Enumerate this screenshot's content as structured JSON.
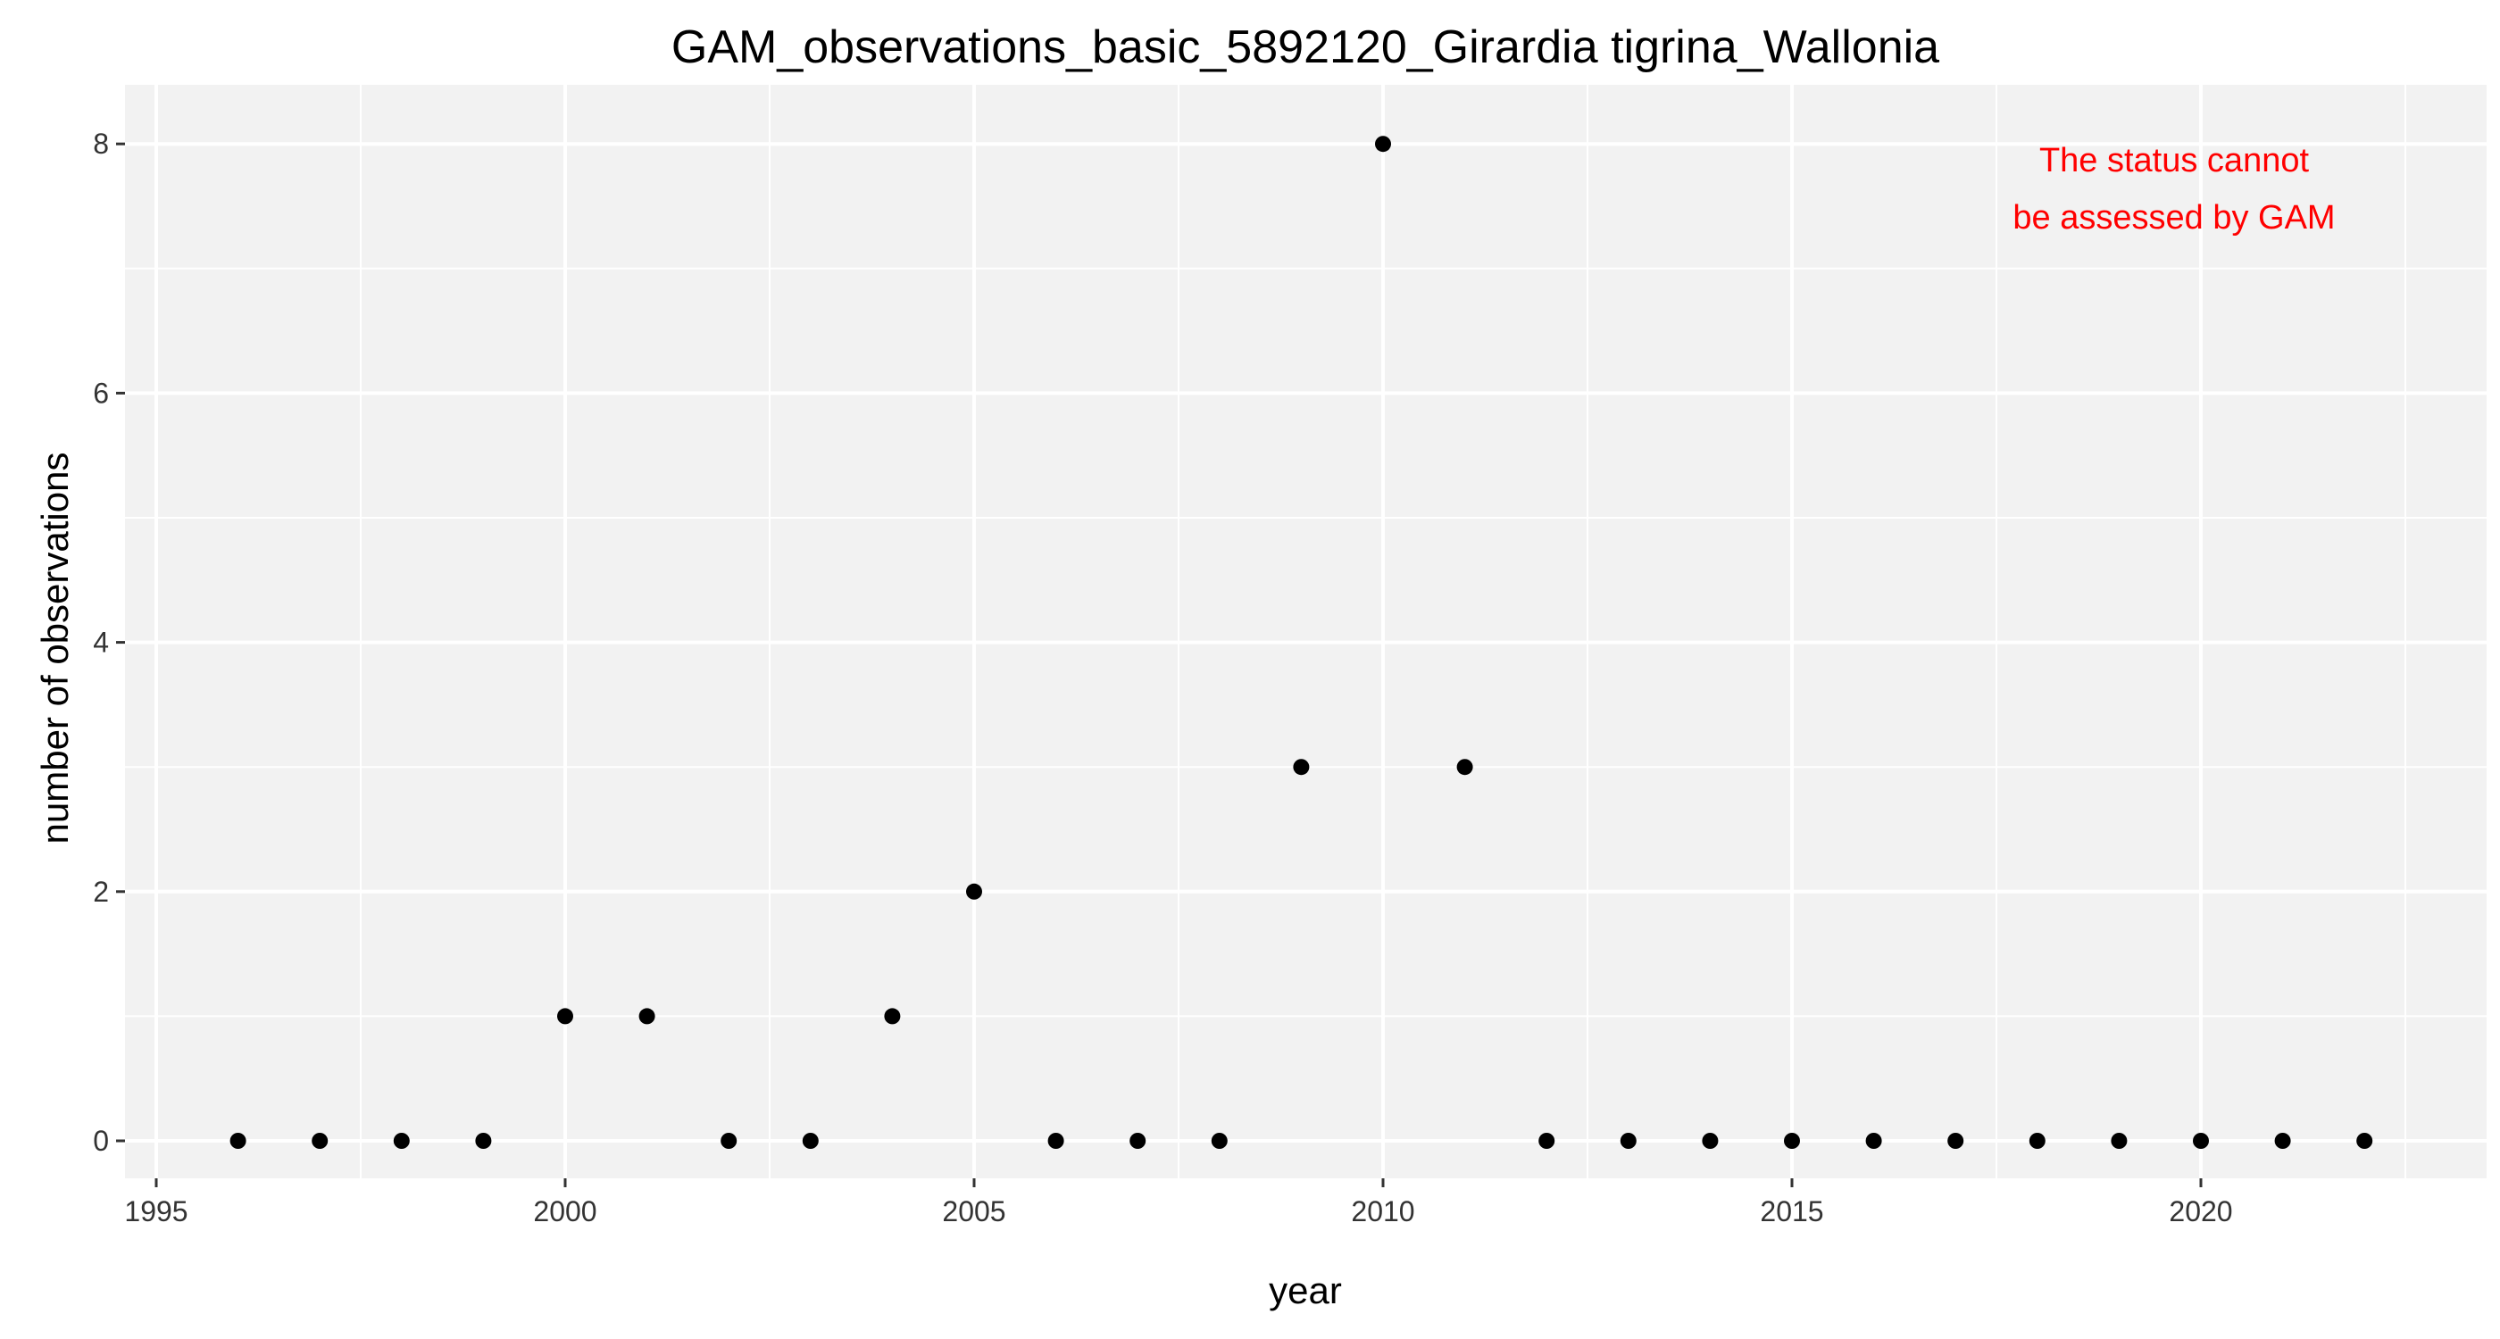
{
  "chart_data": {
    "type": "scatter",
    "title": "GAM_observations_basic_5892120_Girardia tigrina_Wallonia",
    "xlabel": "year",
    "ylabel": "number of observations",
    "xlim": [
      1995,
      2022
    ],
    "ylim": [
      0,
      8
    ],
    "x_ticks": [
      "1995",
      "2000",
      "2005",
      "2010",
      "2015",
      "2020"
    ],
    "y_ticks": [
      "0",
      "2",
      "4",
      "6",
      "8"
    ],
    "grid": true,
    "legend": "none",
    "annotation": {
      "lines": [
        "The status cannot",
        "be assessed by GAM"
      ],
      "color": "#FF0000",
      "placement": "top-right"
    },
    "colors": {
      "panel_background": "#F2F2F2",
      "grid": "#FFFFFF",
      "point": "#000000"
    },
    "points": [
      {
        "x": 1996,
        "y": 0
      },
      {
        "x": 1997,
        "y": 0
      },
      {
        "x": 1998,
        "y": 0
      },
      {
        "x": 1999,
        "y": 0
      },
      {
        "x": 2000,
        "y": 1
      },
      {
        "x": 2001,
        "y": 1
      },
      {
        "x": 2002,
        "y": 0
      },
      {
        "x": 2003,
        "y": 0
      },
      {
        "x": 2004,
        "y": 1
      },
      {
        "x": 2005,
        "y": 2
      },
      {
        "x": 2006,
        "y": 0
      },
      {
        "x": 2007,
        "y": 0
      },
      {
        "x": 2008,
        "y": 0
      },
      {
        "x": 2009,
        "y": 3
      },
      {
        "x": 2010,
        "y": 8
      },
      {
        "x": 2011,
        "y": 3
      },
      {
        "x": 2012,
        "y": 0
      },
      {
        "x": 2013,
        "y": 0
      },
      {
        "x": 2014,
        "y": 0
      },
      {
        "x": 2015,
        "y": 0
      },
      {
        "x": 2016,
        "y": 0
      },
      {
        "x": 2017,
        "y": 0
      },
      {
        "x": 2018,
        "y": 0
      },
      {
        "x": 2019,
        "y": 0
      },
      {
        "x": 2020,
        "y": 0
      },
      {
        "x": 2021,
        "y": 0
      },
      {
        "x": 2022,
        "y": 0
      }
    ]
  }
}
